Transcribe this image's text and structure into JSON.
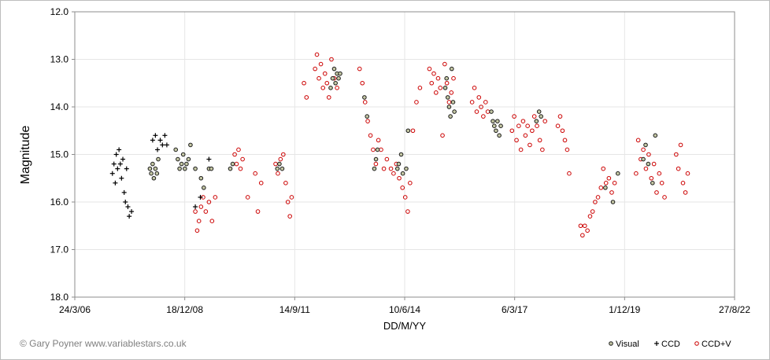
{
  "chart_data": {
    "type": "scatter",
    "xlabel": "DD/M/YY",
    "ylabel": "Magnitude",
    "x_ticks": [
      "24/3/06",
      "18/12/08",
      "14/9/11",
      "10/6/14",
      "6/3/17",
      "1/12/19",
      "27/8/22"
    ],
    "y_ticks": [
      "12.0",
      "13.0",
      "14.0",
      "15.0",
      "16.0",
      "17.0",
      "18.0"
    ],
    "xlim": [
      "2006-03-24",
      "2022-08-27"
    ],
    "ylim": [
      12.0,
      18.0
    ],
    "y_inverted": true,
    "grid": true,
    "legend_position": "bottom-right",
    "series": [
      {
        "name": "Visual",
        "marker": "circle-filled",
        "color": "#1a1a1a",
        "fill": "#c5c8a5",
        "points": [
          [
            "2008-02-05",
            15.3
          ],
          [
            "2008-02-17",
            15.4
          ],
          [
            "2008-03-01",
            15.2
          ],
          [
            "2008-03-12",
            15.5
          ],
          [
            "2008-03-26",
            15.3
          ],
          [
            "2008-04-09",
            15.4
          ],
          [
            "2008-04-21",
            15.1
          ],
          [
            "2008-09-27",
            14.9
          ],
          [
            "2008-10-16",
            15.1
          ],
          [
            "2008-11-01",
            15.3
          ],
          [
            "2008-11-19",
            15.2
          ],
          [
            "2008-12-04",
            15.0
          ],
          [
            "2008-12-19",
            15.3
          ],
          [
            "2009-01-03",
            15.2
          ],
          [
            "2009-01-21",
            15.1
          ],
          [
            "2009-02-08",
            14.8
          ],
          [
            "2009-03-24",
            15.3
          ],
          [
            "2009-05-15",
            15.5
          ],
          [
            "2009-06-09",
            15.7
          ],
          [
            "2009-07-26",
            15.3
          ],
          [
            "2009-08-17",
            15.3
          ],
          [
            "2010-02-05",
            15.3
          ],
          [
            "2010-02-27",
            15.2
          ],
          [
            "2011-04-09",
            15.3
          ],
          [
            "2011-04-28",
            15.2
          ],
          [
            "2011-05-23",
            15.3
          ],
          [
            "2012-08-06",
            13.6
          ],
          [
            "2012-08-24",
            13.4
          ],
          [
            "2012-09-07",
            13.2
          ],
          [
            "2012-09-19",
            13.5
          ],
          [
            "2012-10-03",
            13.3
          ],
          [
            "2012-10-17",
            13.4
          ],
          [
            "2012-10-31",
            13.3
          ],
          [
            "2013-06-09",
            13.8
          ],
          [
            "2013-07-03",
            14.2
          ],
          [
            "2013-09-07",
            15.3
          ],
          [
            "2013-09-22",
            15.1
          ],
          [
            "2013-10-06",
            14.9
          ],
          [
            "2014-04-05",
            15.3
          ],
          [
            "2014-04-17",
            15.2
          ],
          [
            "2014-05-09",
            15.0
          ],
          [
            "2014-05-24",
            15.4
          ],
          [
            "2014-06-24",
            15.3
          ],
          [
            "2014-07-11",
            14.5
          ],
          [
            "2015-06-14",
            13.6
          ],
          [
            "2015-06-26",
            13.4
          ],
          [
            "2015-07-07",
            13.8
          ],
          [
            "2015-07-19",
            14.0
          ],
          [
            "2015-07-31",
            14.2
          ],
          [
            "2015-08-12",
            13.2
          ],
          [
            "2015-08-24",
            13.9
          ],
          [
            "2015-09-05",
            14.1
          ],
          [
            "2016-08-06",
            14.1
          ],
          [
            "2016-08-20",
            14.3
          ],
          [
            "2016-09-02",
            14.4
          ],
          [
            "2016-09-17",
            14.5
          ],
          [
            "2016-10-01",
            14.3
          ],
          [
            "2016-10-17",
            14.6
          ],
          [
            "2016-10-31",
            14.4
          ],
          [
            "2017-09-20",
            14.3
          ],
          [
            "2017-10-14",
            14.1
          ],
          [
            "2017-11-01",
            14.2
          ],
          [
            "2019-06-09",
            15.7
          ],
          [
            "2019-08-17",
            16.0
          ],
          [
            "2019-10-01",
            15.4
          ],
          [
            "2020-05-19",
            15.1
          ],
          [
            "2020-06-09",
            14.8
          ],
          [
            "2020-07-03",
            15.2
          ],
          [
            "2020-08-11",
            15.6
          ],
          [
            "2020-09-05",
            14.6
          ]
        ]
      },
      {
        "name": "CCD",
        "marker": "plus",
        "color": "#000000",
        "points": [
          [
            "2007-03-01",
            15.4
          ],
          [
            "2007-03-15",
            15.2
          ],
          [
            "2007-03-27",
            15.6
          ],
          [
            "2007-04-05",
            15.0
          ],
          [
            "2007-04-17",
            15.3
          ],
          [
            "2007-04-30",
            14.9
          ],
          [
            "2007-05-12",
            15.2
          ],
          [
            "2007-05-23",
            15.5
          ],
          [
            "2007-06-04",
            15.1
          ],
          [
            "2007-06-16",
            15.8
          ],
          [
            "2007-06-27",
            16.0
          ],
          [
            "2007-07-08",
            15.3
          ],
          [
            "2007-07-20",
            16.1
          ],
          [
            "2007-08-01",
            16.3
          ],
          [
            "2007-08-22",
            16.2
          ],
          [
            "2008-03-01",
            14.7
          ],
          [
            "2008-03-26",
            14.6
          ],
          [
            "2008-04-14",
            14.9
          ],
          [
            "2008-05-09",
            14.7
          ],
          [
            "2008-05-29",
            14.8
          ],
          [
            "2008-06-20",
            14.6
          ],
          [
            "2008-07-08",
            14.8
          ],
          [
            "2009-03-24",
            16.1
          ],
          [
            "2009-05-09",
            15.9
          ],
          [
            "2009-07-26",
            15.1
          ]
        ]
      },
      {
        "name": "CCD+V",
        "marker": "circle-open",
        "color": "#cc0000",
        "points": [
          [
            "2009-03-24",
            16.2
          ],
          [
            "2009-04-10",
            16.6
          ],
          [
            "2009-04-26",
            16.4
          ],
          [
            "2009-05-15",
            16.1
          ],
          [
            "2009-06-03",
            15.9
          ],
          [
            "2009-06-27",
            16.2
          ],
          [
            "2009-07-26",
            16.0
          ],
          [
            "2009-08-23",
            16.4
          ],
          [
            "2009-09-21",
            15.9
          ],
          [
            "2010-03-17",
            15.0
          ],
          [
            "2010-04-03",
            15.2
          ],
          [
            "2010-04-21",
            14.9
          ],
          [
            "2010-05-09",
            15.3
          ],
          [
            "2010-05-28",
            15.1
          ],
          [
            "2010-07-14",
            15.9
          ],
          [
            "2010-09-20",
            15.4
          ],
          [
            "2010-10-14",
            16.2
          ],
          [
            "2010-11-13",
            15.6
          ],
          [
            "2011-03-24",
            15.2
          ],
          [
            "2011-04-14",
            15.4
          ],
          [
            "2011-05-08",
            15.1
          ],
          [
            "2011-06-02",
            15.0
          ],
          [
            "2011-06-24",
            15.6
          ],
          [
            "2011-07-14",
            16.0
          ],
          [
            "2011-08-01",
            16.3
          ],
          [
            "2011-08-17",
            15.9
          ],
          [
            "2011-12-07",
            13.5
          ],
          [
            "2011-12-30",
            13.8
          ],
          [
            "2012-03-17",
            13.2
          ],
          [
            "2012-04-03",
            12.9
          ],
          [
            "2012-04-21",
            13.4
          ],
          [
            "2012-05-09",
            13.1
          ],
          [
            "2012-05-28",
            13.6
          ],
          [
            "2012-06-15",
            13.3
          ],
          [
            "2012-07-03",
            13.5
          ],
          [
            "2012-07-21",
            13.8
          ],
          [
            "2012-08-13",
            13.0
          ],
          [
            "2012-09-07",
            13.4
          ],
          [
            "2012-10-03",
            13.6
          ],
          [
            "2013-04-26",
            13.2
          ],
          [
            "2013-05-21",
            13.5
          ],
          [
            "2013-06-15",
            13.9
          ],
          [
            "2013-07-09",
            14.3
          ],
          [
            "2013-08-03",
            14.6
          ],
          [
            "2013-08-27",
            14.9
          ],
          [
            "2013-09-21",
            15.2
          ],
          [
            "2013-10-14",
            14.7
          ],
          [
            "2013-11-07",
            14.9
          ],
          [
            "2013-12-03",
            15.3
          ],
          [
            "2013-12-30",
            15.1
          ],
          [
            "2014-02-05",
            15.3
          ],
          [
            "2014-03-01",
            15.4
          ],
          [
            "2014-03-26",
            15.2
          ],
          [
            "2014-04-21",
            15.5
          ],
          [
            "2014-05-21",
            15.7
          ],
          [
            "2014-06-15",
            15.9
          ],
          [
            "2014-07-08",
            16.2
          ],
          [
            "2014-07-29",
            15.6
          ],
          [
            "2014-08-24",
            14.5
          ],
          [
            "2014-09-25",
            13.9
          ],
          [
            "2014-10-27",
            13.6
          ],
          [
            "2015-01-21",
            13.2
          ],
          [
            "2015-02-10",
            13.5
          ],
          [
            "2015-03-02",
            13.3
          ],
          [
            "2015-03-22",
            13.7
          ],
          [
            "2015-04-10",
            13.4
          ],
          [
            "2015-04-30",
            13.6
          ],
          [
            "2015-05-20",
            14.6
          ],
          [
            "2015-06-09",
            13.1
          ],
          [
            "2015-06-29",
            13.5
          ],
          [
            "2015-07-19",
            13.9
          ],
          [
            "2015-08-08",
            13.7
          ],
          [
            "2015-08-28",
            13.4
          ],
          [
            "2016-02-13",
            13.9
          ],
          [
            "2016-03-05",
            13.6
          ],
          [
            "2016-03-26",
            14.1
          ],
          [
            "2016-04-15",
            13.8
          ],
          [
            "2016-05-05",
            14.0
          ],
          [
            "2016-05-25",
            14.2
          ],
          [
            "2016-06-15",
            13.9
          ],
          [
            "2016-07-05",
            14.1
          ],
          [
            "2017-02-10",
            14.5
          ],
          [
            "2017-03-02",
            14.2
          ],
          [
            "2017-03-23",
            14.7
          ],
          [
            "2017-04-12",
            14.4
          ],
          [
            "2017-05-02",
            14.9
          ],
          [
            "2017-05-22",
            14.3
          ],
          [
            "2017-06-12",
            14.6
          ],
          [
            "2017-07-02",
            14.4
          ],
          [
            "2017-07-22",
            14.8
          ],
          [
            "2017-08-12",
            14.5
          ],
          [
            "2017-09-01",
            14.2
          ],
          [
            "2017-09-25",
            14.4
          ],
          [
            "2017-10-21",
            14.7
          ],
          [
            "2017-11-13",
            14.9
          ],
          [
            "2017-12-07",
            14.3
          ],
          [
            "2018-04-03",
            14.4
          ],
          [
            "2018-04-24",
            14.2
          ],
          [
            "2018-05-15",
            14.5
          ],
          [
            "2018-06-06",
            14.7
          ],
          [
            "2018-06-27",
            14.9
          ],
          [
            "2018-07-15",
            15.4
          ],
          [
            "2018-10-27",
            16.5
          ],
          [
            "2018-11-13",
            16.7
          ],
          [
            "2018-12-04",
            16.5
          ],
          [
            "2018-12-28",
            16.6
          ],
          [
            "2019-01-21",
            16.3
          ],
          [
            "2019-02-13",
            16.2
          ],
          [
            "2019-03-08",
            16.0
          ],
          [
            "2019-04-03",
            15.9
          ],
          [
            "2019-04-30",
            15.7
          ],
          [
            "2019-05-21",
            15.3
          ],
          [
            "2019-06-15",
            15.6
          ],
          [
            "2019-07-11",
            15.5
          ],
          [
            "2019-08-06",
            15.8
          ],
          [
            "2019-09-01",
            15.6
          ],
          [
            "2020-03-14",
            15.4
          ],
          [
            "2020-04-03",
            14.7
          ],
          [
            "2020-04-26",
            15.1
          ],
          [
            "2020-05-19",
            14.9
          ],
          [
            "2020-06-12",
            15.3
          ],
          [
            "2020-07-07",
            15.0
          ],
          [
            "2020-07-31",
            15.5
          ],
          [
            "2020-08-24",
            15.2
          ],
          [
            "2020-09-17",
            15.8
          ],
          [
            "2020-10-11",
            15.4
          ],
          [
            "2020-11-04",
            15.6
          ],
          [
            "2020-11-28",
            15.9
          ],
          [
            "2021-03-14",
            15.0
          ],
          [
            "2021-04-03",
            15.3
          ],
          [
            "2021-04-24",
            14.8
          ],
          [
            "2021-05-15",
            15.6
          ],
          [
            "2021-06-06",
            15.8
          ],
          [
            "2021-06-27",
            15.4
          ]
        ]
      }
    ]
  },
  "credit": "© Gary Poyner  www.variablestars.co.uk",
  "colors": {
    "grid": "#e6e6e6",
    "axis": "#8c8c8c",
    "visual_fill": "#c5c8a5",
    "visual_stroke": "#1a1a1a",
    "ccd": "#000000",
    "ccdv": "#cc0000",
    "credit_text": "#7f7f7f"
  }
}
